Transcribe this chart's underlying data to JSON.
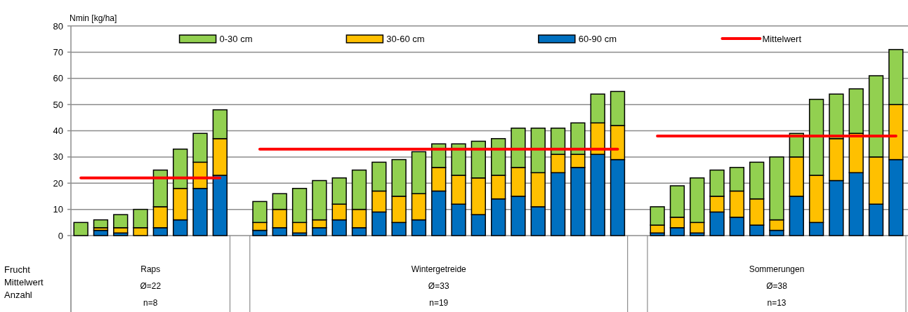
{
  "chart_data": {
    "type": "bar",
    "stacked": true,
    "ylabel": "Nmin [kg/ha]",
    "ylim": [
      0,
      80
    ],
    "yticks": [
      0,
      10,
      20,
      30,
      40,
      50,
      60,
      70,
      80
    ],
    "grid": "y",
    "legend": "top",
    "categories": [
      null,
      null,
      null,
      null,
      null,
      null,
      null,
      null,
      null,
      null,
      null,
      null,
      null,
      null,
      null,
      null,
      null,
      null,
      null,
      null,
      null,
      null,
      null,
      null,
      null,
      null,
      null,
      null,
      null,
      null,
      null,
      null,
      null,
      null,
      null,
      null,
      null,
      null,
      null,
      null,
      null,
      null
    ],
    "series": [
      {
        "name": "60-90 cm",
        "color": "#0070c0",
        "values": [
          0,
          2,
          1,
          0,
          3,
          6,
          18,
          23,
          null,
          2,
          3,
          1,
          3,
          6,
          3,
          9,
          5,
          6,
          17,
          12,
          8,
          14,
          15,
          11,
          24,
          26,
          31,
          29,
          null,
          1,
          3,
          1,
          9,
          7,
          4,
          2,
          15,
          5,
          21,
          24,
          12,
          29
        ]
      },
      {
        "name": "30-60 cm",
        "color": "#ffc000",
        "values": [
          0,
          1,
          2,
          3,
          8,
          12,
          10,
          14,
          null,
          3,
          7,
          4,
          3,
          6,
          7,
          8,
          10,
          10,
          9,
          11,
          14,
          9,
          11,
          13,
          7,
          5,
          12,
          13,
          null,
          3,
          4,
          4,
          6,
          10,
          10,
          4,
          15,
          18,
          16,
          15,
          18,
          21
        ]
      },
      {
        "name": "0-30 cm",
        "color": "#92d050",
        "values": [
          5,
          3,
          5,
          7,
          14,
          15,
          11,
          11,
          null,
          8,
          6,
          13,
          15,
          10,
          15,
          11,
          14,
          16,
          9,
          12,
          14,
          14,
          15,
          17,
          10,
          12,
          11,
          13,
          null,
          7,
          12,
          17,
          10,
          9,
          14,
          24,
          9,
          29,
          17,
          17,
          31,
          21
        ]
      },
      {
        "name": "Mittelwert",
        "type": "line",
        "color": "#ff0000",
        "values": [
          22,
          22,
          22,
          22,
          22,
          22,
          22,
          22,
          null,
          33,
          33,
          33,
          33,
          33,
          33,
          33,
          33,
          33,
          33,
          33,
          33,
          33,
          33,
          33,
          33,
          33,
          33,
          33,
          null,
          38,
          38,
          38,
          38,
          38,
          38,
          38,
          38,
          38,
          38,
          38,
          38,
          38
        ]
      }
    ],
    "annotations": [
      "Frucht",
      "Mittelwert",
      "Anzahl",
      "Raps",
      "Ø=22",
      "n=8",
      "Wintergetreide",
      "Ø=33",
      "n=19",
      "Sommerungen",
      "Ø=38",
      "n=13"
    ]
  }
}
